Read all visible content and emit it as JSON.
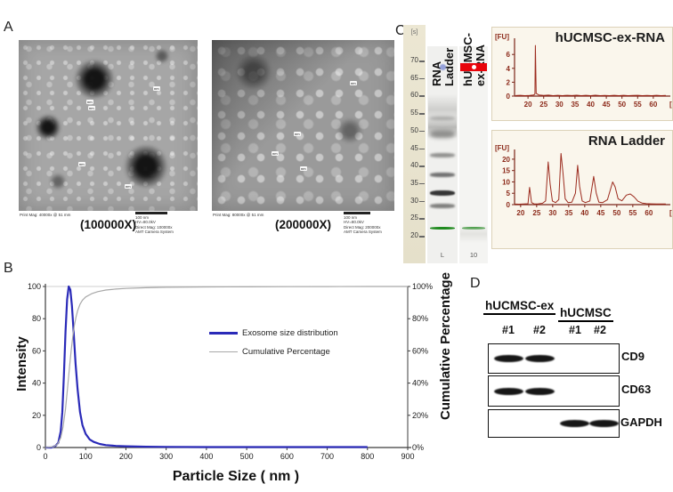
{
  "panel_a": {
    "label": "A",
    "annotation_label": "nm",
    "micrographs": [
      {
        "caption": "(100000X)",
        "print_mag": "Print Mag: 40000x @ 51 mm",
        "scale_label": "100 nm",
        "hv": "HV=80.0kV",
        "direct_mag": "Direct Mag: 100000x",
        "camera": "AMT Camera System"
      },
      {
        "caption": "(200000X)",
        "print_mag": "Print Mag: 80000x @ 51 mm",
        "scale_label": "100 nm",
        "hv": "HV=80.0kV",
        "direct_mag": "Direct Mag: 200000x",
        "camera": "AMT Camera System"
      }
    ]
  },
  "panel_b": {
    "label": "B"
  },
  "panel_c": {
    "label": "C",
    "gel": {
      "unit": "[s]",
      "ticks": [
        70,
        65,
        60,
        55,
        50,
        45,
        40,
        35,
        30,
        25,
        20
      ],
      "lane_headers": [
        "RNA Ladder",
        "hUCMSC-ex-RNA"
      ],
      "lane_footers": [
        "L",
        "10"
      ],
      "bands": [
        {
          "lane": 0,
          "s": 68,
          "kind": "dot",
          "color": "#94a0da",
          "h": 7
        },
        {
          "lane": 0,
          "s": 56,
          "kind": "smear",
          "color": "#cfcfcd",
          "h": 34
        },
        {
          "lane": 0,
          "s": 51,
          "kind": "smear",
          "color": "#b9b9b7",
          "h": 26
        },
        {
          "lane": 0,
          "s": 53.5,
          "kind": "band",
          "color": "#a8a8a6",
          "h": 4,
          "blur": 1.5
        },
        {
          "lane": 0,
          "s": 49,
          "kind": "band",
          "color": "#8e8e8c",
          "h": 9,
          "blur": 2.5
        },
        {
          "lane": 0,
          "s": 43,
          "kind": "band",
          "color": "#90908e",
          "h": 5,
          "blur": 1.2
        },
        {
          "lane": 0,
          "s": 37.4,
          "kind": "band",
          "color": "#707070",
          "h": 5,
          "blur": 1
        },
        {
          "lane": 0,
          "s": 32.3,
          "kind": "band",
          "color": "#353535",
          "h": 6,
          "blur": 0.8
        },
        {
          "lane": 0,
          "s": 28.5,
          "kind": "band",
          "color": "#7e7e7c",
          "h": 5,
          "blur": 1.1
        },
        {
          "lane": 0,
          "s": 22.2,
          "kind": "band",
          "color": "#1f8a1f",
          "h": 3,
          "blur": 0.3
        },
        {
          "lane": 1,
          "s": 68,
          "kind": "marker",
          "color": "#e8050c",
          "h": 9
        },
        {
          "lane": 1,
          "s": 22.2,
          "kind": "band",
          "color": "#1f8a1f",
          "h": 3,
          "blur": 0.3
        },
        {
          "lane": 1,
          "s": 20.5,
          "kind": "smear",
          "color": "#e3e3e0",
          "h": 20
        }
      ]
    }
  },
  "panel_d": {
    "label": "D",
    "groups": [
      {
        "name": "hUCMSC-ex",
        "lanes": [
          "#1",
          "#2"
        ]
      },
      {
        "name": "hUCMSC",
        "lanes": [
          "#1",
          "#2"
        ]
      }
    ],
    "blots": [
      {
        "protein": "CD9",
        "bands": [
          1,
          1,
          0,
          0
        ]
      },
      {
        "protein": "CD63",
        "bands": [
          1,
          1,
          0,
          0
        ]
      },
      {
        "protein": "GAPDH",
        "bands": [
          0,
          0,
          1,
          1
        ]
      }
    ]
  },
  "chart_data": [
    {
      "id": "exosome-size-distribution",
      "type": "line",
      "title": "",
      "xlabel": "Particle Size ( nm )",
      "ylabel": "Intensity",
      "ylabel_right": "Cumulative Percentage",
      "xlim": [
        0,
        900
      ],
      "ylim": [
        0,
        100
      ],
      "x_ticks": [
        0,
        100,
        200,
        300,
        400,
        500,
        600,
        700,
        800,
        900
      ],
      "y_ticks": [
        0,
        20,
        40,
        60,
        80,
        100
      ],
      "right_ticks": [
        {
          "v": 0,
          "label": "0%"
        },
        {
          "v": 20,
          "label": "20%"
        },
        {
          "v": 40,
          "label": "40%"
        },
        {
          "v": 60,
          "label": "60%"
        },
        {
          "v": 80,
          "label": "80%"
        },
        {
          "v": 100,
          "label": "100%"
        }
      ],
      "frame": true,
      "axis_color": "#3c3c3c",
      "tick_color": "#1a1a1a",
      "tick_size": 9,
      "legend": [
        {
          "label": "Exosome size distribution",
          "color": "#2a2ab8"
        },
        {
          "label": "Cumulative Percentage",
          "color": "#a8a8a8"
        }
      ],
      "series": [
        {
          "name": "Exosome size distribution",
          "color": "#2a2ab8",
          "width": 2.2,
          "points": [
            [
              0,
              0
            ],
            [
              15,
              0
            ],
            [
              25,
              1
            ],
            [
              32,
              3
            ],
            [
              38,
              10
            ],
            [
              42,
              22
            ],
            [
              46,
              45
            ],
            [
              50,
              72
            ],
            [
              54,
              92
            ],
            [
              58,
              100
            ],
            [
              62,
              98
            ],
            [
              66,
              88
            ],
            [
              70,
              72
            ],
            [
              75,
              52
            ],
            [
              80,
              36
            ],
            [
              86,
              22
            ],
            [
              92,
              14
            ],
            [
              100,
              8.5
            ],
            [
              110,
              5
            ],
            [
              120,
              3.5
            ],
            [
              135,
              2.2
            ],
            [
              150,
              1.5
            ],
            [
              175,
              1
            ],
            [
              200,
              0.8
            ],
            [
              250,
              0.5
            ],
            [
              300,
              0.4
            ],
            [
              400,
              0.3
            ],
            [
              500,
              0.3
            ],
            [
              600,
              0.3
            ],
            [
              700,
              0.3
            ],
            [
              800,
              0.3
            ]
          ]
        },
        {
          "name": "Cumulative Percentage",
          "color": "#a8a8a8",
          "width": 1.2,
          "points": [
            [
              0,
              0
            ],
            [
              20,
              0.5
            ],
            [
              30,
              2
            ],
            [
              38,
              6
            ],
            [
              44,
              13
            ],
            [
              50,
              24
            ],
            [
              55,
              37
            ],
            [
              60,
              50
            ],
            [
              64,
              60
            ],
            [
              68,
              69
            ],
            [
              72,
              76
            ],
            [
              76,
              81
            ],
            [
              80,
              85
            ],
            [
              86,
              89
            ],
            [
              92,
              91.5
            ],
            [
              100,
              93.5
            ],
            [
              115,
              95.5
            ],
            [
              130,
              96.8
            ],
            [
              150,
              97.8
            ],
            [
              175,
              98.4
            ],
            [
              200,
              98.8
            ],
            [
              250,
              99.2
            ],
            [
              300,
              99.5
            ],
            [
              400,
              99.7
            ],
            [
              500,
              99.8
            ],
            [
              600,
              99.9
            ],
            [
              700,
              99.95
            ],
            [
              800,
              100
            ],
            [
              900,
              100
            ]
          ]
        }
      ]
    },
    {
      "id": "hucmsc-ex-rna-electropherogram",
      "type": "line",
      "title": "hUCMSC-ex-RNA",
      "x_unit": "[s]",
      "y_unit": "[FU]",
      "xlim": [
        15.7,
        64.3
      ],
      "ylim": [
        0,
        7.95
      ],
      "x_ticks": [
        20,
        25,
        30,
        35,
        40,
        45,
        50,
        55,
        60
      ],
      "y_ticks": [
        0,
        2,
        4,
        6
      ],
      "axis_color": "#7a2418",
      "tick_color": "#8c2a1a",
      "tick_size": 8,
      "tick_bold": true,
      "series": [
        {
          "name": "hUCMSC-ex-RNA",
          "color": "#9c2b1e",
          "width": 1,
          "points": [
            [
              16,
              0.08
            ],
            [
              17.5,
              0.12
            ],
            [
              19,
              0.06
            ],
            [
              20.5,
              0.1
            ],
            [
              21.8,
              0.15
            ],
            [
              22.2,
              0.3
            ],
            [
              22.35,
              7.3
            ],
            [
              22.6,
              0.4
            ],
            [
              23.5,
              0.15
            ],
            [
              25,
              0.1
            ],
            [
              26.5,
              0.14
            ],
            [
              28,
              0.07
            ],
            [
              29.5,
              0.12
            ],
            [
              31,
              0.06
            ],
            [
              32.5,
              0.12
            ],
            [
              34,
              0.08
            ],
            [
              35.5,
              0.13
            ],
            [
              37,
              0.06
            ],
            [
              38.5,
              0.11
            ],
            [
              40,
              0.07
            ],
            [
              41.5,
              0.13
            ],
            [
              43,
              0.07
            ],
            [
              44.5,
              0.1
            ],
            [
              46,
              0.06
            ],
            [
              47.5,
              0.12
            ],
            [
              49,
              0.07
            ],
            [
              50.5,
              0.11
            ],
            [
              52,
              0.06
            ],
            [
              53.5,
              0.1
            ],
            [
              55,
              0.12
            ],
            [
              56.5,
              0.06
            ],
            [
              58,
              0.1
            ],
            [
              59.5,
              0.07
            ],
            [
              61,
              0.11
            ],
            [
              62.5,
              0.06
            ],
            [
              64,
              0.09
            ]
          ]
        }
      ]
    },
    {
      "id": "rna-ladder-electropherogram",
      "type": "line",
      "title": "RNA Ladder",
      "x_unit": "[s]",
      "y_unit": "[FU]",
      "xlim": [
        18.1,
        65.6
      ],
      "ylim": [
        0,
        23.1
      ],
      "x_ticks": [
        20,
        25,
        30,
        35,
        40,
        45,
        50,
        55,
        60
      ],
      "y_ticks": [
        0,
        5,
        10,
        15,
        20
      ],
      "axis_color": "#7a2418",
      "tick_color": "#8c2a1a",
      "tick_size": 8,
      "tick_bold": true,
      "series": [
        {
          "name": "RNA Ladder",
          "color": "#9c2b1e",
          "width": 1,
          "points": [
            [
              18.3,
              0.25
            ],
            [
              19.5,
              0.2
            ],
            [
              21,
              0.3
            ],
            [
              22.3,
              0.4
            ],
            [
              22.8,
              7.6
            ],
            [
              23.4,
              0.9
            ],
            [
              24.2,
              0.3
            ],
            [
              25.5,
              0.35
            ],
            [
              26.8,
              0.6
            ],
            [
              27.8,
              1.6
            ],
            [
              28.6,
              18.8
            ],
            [
              29.2,
              9
            ],
            [
              29.9,
              1.6
            ],
            [
              30.9,
              0.9
            ],
            [
              31.9,
              2.2
            ],
            [
              32.6,
              22.5
            ],
            [
              33.2,
              14
            ],
            [
              33.9,
              2.6
            ],
            [
              34.8,
              0.9
            ],
            [
              36,
              1.1
            ],
            [
              37.1,
              5
            ],
            [
              37.8,
              17.3
            ],
            [
              38.4,
              8
            ],
            [
              39.2,
              1.6
            ],
            [
              40.2,
              0.9
            ],
            [
              41.6,
              1.6
            ],
            [
              42.8,
              12.4
            ],
            [
              43.6,
              5
            ],
            [
              44.4,
              1.1
            ],
            [
              45.6,
              0.9
            ],
            [
              47.1,
              2.2
            ],
            [
              48.7,
              10
            ],
            [
              49.5,
              7.8
            ],
            [
              50.4,
              2.6
            ],
            [
              51.6,
              1.7
            ],
            [
              53,
              4.2
            ],
            [
              54.2,
              4.7
            ],
            [
              55.4,
              3.4
            ],
            [
              56.6,
              1.5
            ],
            [
              57.9,
              0.7
            ],
            [
              59.2,
              0.45
            ],
            [
              60.8,
              0.35
            ],
            [
              62.4,
              0.3
            ],
            [
              64,
              0.3
            ],
            [
              65.3,
              0.3
            ]
          ]
        }
      ]
    }
  ]
}
